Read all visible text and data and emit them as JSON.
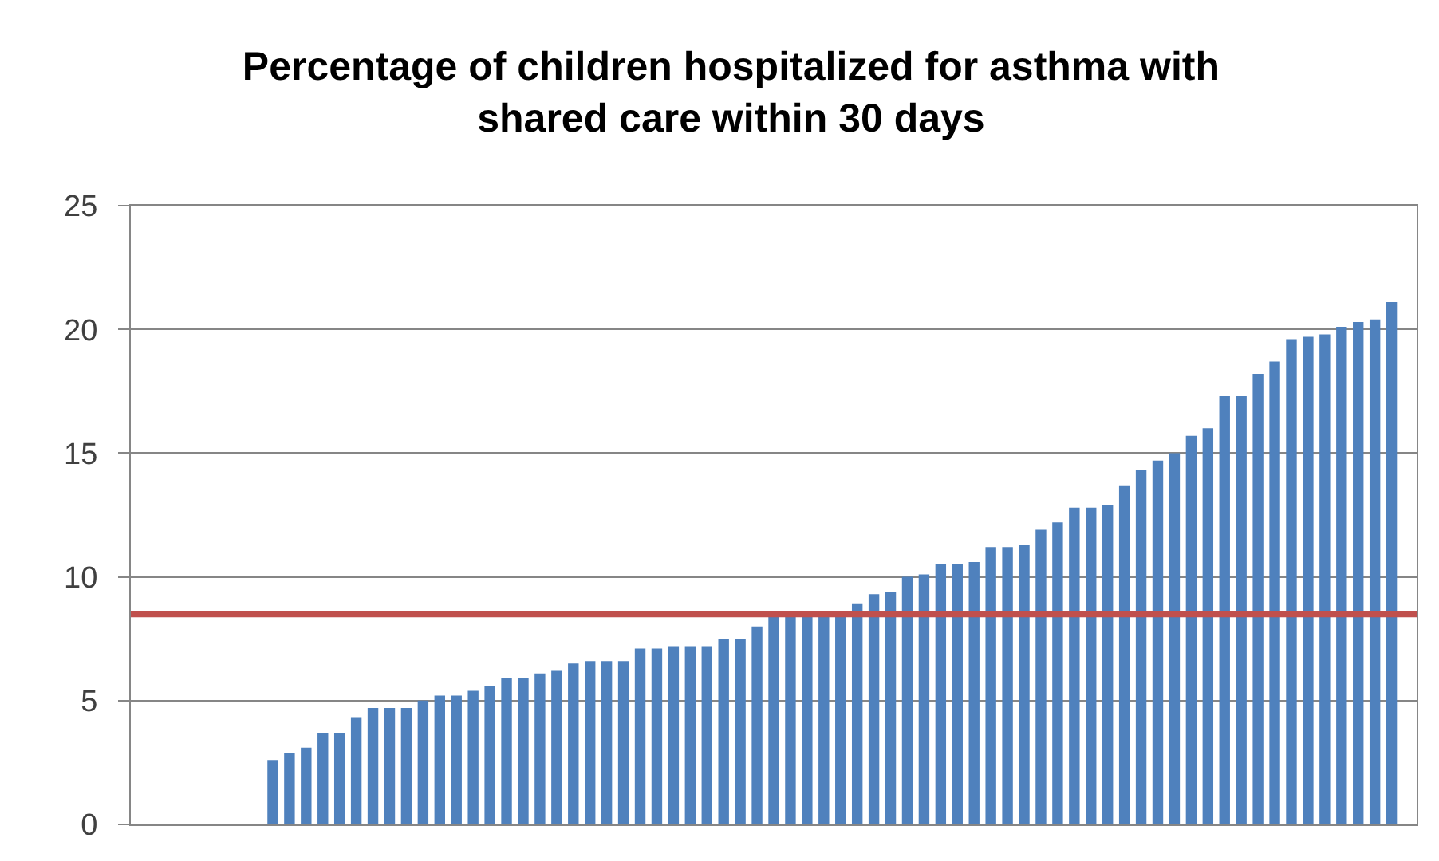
{
  "chart_data": {
    "type": "bar",
    "title": "Percentage of children hospitalized for asthma with\nshared care within 30 days",
    "categories": [
      null,
      null,
      null,
      null,
      null,
      null,
      null,
      null,
      null,
      null,
      null,
      null,
      null,
      null,
      null,
      null,
      null,
      null,
      null,
      null,
      null,
      null,
      null,
      null,
      null,
      null,
      null,
      null,
      null,
      null,
      null,
      null,
      null,
      null,
      null,
      null,
      null,
      null,
      null,
      null,
      null,
      null,
      null,
      null,
      null,
      null,
      null,
      null,
      null,
      null,
      null,
      null,
      null,
      null,
      null,
      null,
      null,
      null,
      null,
      null,
      null,
      null,
      null,
      null,
      null,
      null,
      null,
      null,
      null,
      null,
      null,
      null,
      null,
      null,
      null,
      null,
      null
    ],
    "values": [
      null,
      null,
      null,
      null,
      null,
      null,
      null,
      null,
      2.6,
      2.9,
      3.1,
      3.7,
      3.7,
      4.3,
      4.7,
      4.7,
      4.7,
      5.0,
      5.2,
      5.2,
      5.4,
      5.6,
      5.9,
      5.9,
      6.1,
      6.2,
      6.5,
      6.6,
      6.6,
      6.6,
      7.1,
      7.1,
      7.2,
      7.2,
      7.2,
      7.5,
      7.5,
      8.0,
      8.4,
      8.4,
      8.4,
      8.4,
      8.4,
      8.9,
      9.3,
      9.4,
      10.0,
      10.1,
      10.5,
      10.5,
      10.6,
      11.2,
      11.2,
      11.3,
      11.9,
      12.2,
      12.8,
      12.8,
      12.9,
      13.7,
      14.3,
      14.7,
      15.0,
      15.7,
      16.0,
      17.3,
      17.3,
      18.2,
      18.7,
      19.6,
      19.7,
      19.8,
      20.1,
      20.3,
      20.4,
      21.1,
      null
    ],
    "color": "#4f81bd",
    "ylim": [
      0,
      25
    ],
    "yticks": [
      0,
      5,
      10,
      15,
      20,
      25
    ],
    "grid": "y",
    "tick_labels": "y",
    "ref_lines": [
      {
        "axis": "y",
        "value": 8.5,
        "color": "#c0504d"
      }
    ]
  }
}
